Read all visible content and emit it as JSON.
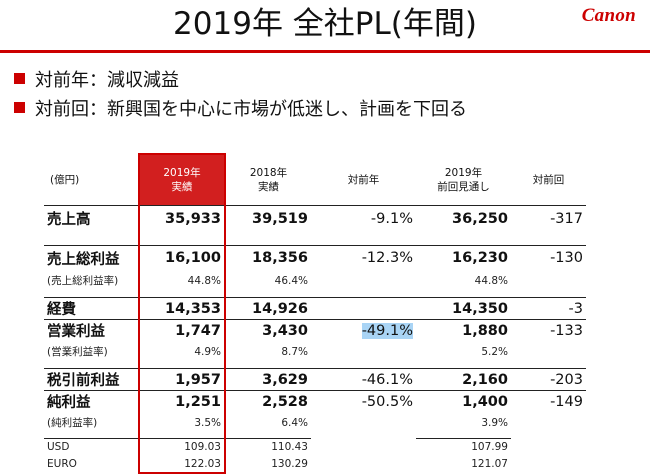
{
  "slide": {
    "title": "2019年 全社PL(年間)",
    "logo": "Canon",
    "bullets": [
      "対前年：減収減益",
      "対前回：新興国を中心に市場が低迷し、計画を下回る"
    ]
  },
  "table": {
    "headers": {
      "unit": "(億円)",
      "col1": [
        "2019年",
        "実績"
      ],
      "col2": [
        "2018年",
        "実績"
      ],
      "col3": "対前年",
      "col4": [
        "2019年",
        "前回見通し"
      ],
      "col5": "対前回"
    },
    "rows": [
      {
        "label": "売上高",
        "c1": "35,933",
        "c2": "39,519",
        "c3": "-9.1%",
        "c4": "36,250",
        "c5": "-317"
      },
      {
        "label": "売上総利益",
        "c1": "16,100",
        "c2": "18,356",
        "c3": "-12.3%",
        "c4": "16,230",
        "c5": "-130"
      },
      {
        "label": "(売上総利益率)",
        "c1": "44.8%",
        "c2": "46.4%",
        "c3": "",
        "c4": "44.8%",
        "c5": ""
      },
      {
        "label": "経費",
        "c1": "14,353",
        "c2": "14,926",
        "c3": "",
        "c4": "14,350",
        "c5": "-3"
      },
      {
        "label": "営業利益",
        "c1": "1,747",
        "c2": "3,430",
        "c3": "-49.1%",
        "c4": "1,880",
        "c5": "-133"
      },
      {
        "label": "(営業利益率)",
        "c1": "4.9%",
        "c2": "8.7%",
        "c3": "",
        "c4": "5.2%",
        "c5": ""
      },
      {
        "label": "税引前利益",
        "c1": "1,957",
        "c2": "3,629",
        "c3": "-46.1%",
        "c4": "2,160",
        "c5": "-203"
      },
      {
        "label": "純利益",
        "c1": "1,251",
        "c2": "2,528",
        "c3": "-50.5%",
        "c4": "1,400",
        "c5": "-149"
      },
      {
        "label": "(純利益率)",
        "c1": "3.5%",
        "c2": "6.4%",
        "c3": "",
        "c4": "3.9%",
        "c5": ""
      },
      {
        "label": "USD",
        "c1": "109.03",
        "c2": "110.43",
        "c3": "",
        "c4": "107.99",
        "c5": ""
      },
      {
        "label": "EURO",
        "c1": "122.03",
        "c2": "130.29",
        "c3": "",
        "c4": "121.07",
        "c5": ""
      }
    ]
  },
  "colors": {
    "accent": "#cc0000",
    "header_fill": "#d21f1f",
    "highlight": "#a9d4f5"
  }
}
